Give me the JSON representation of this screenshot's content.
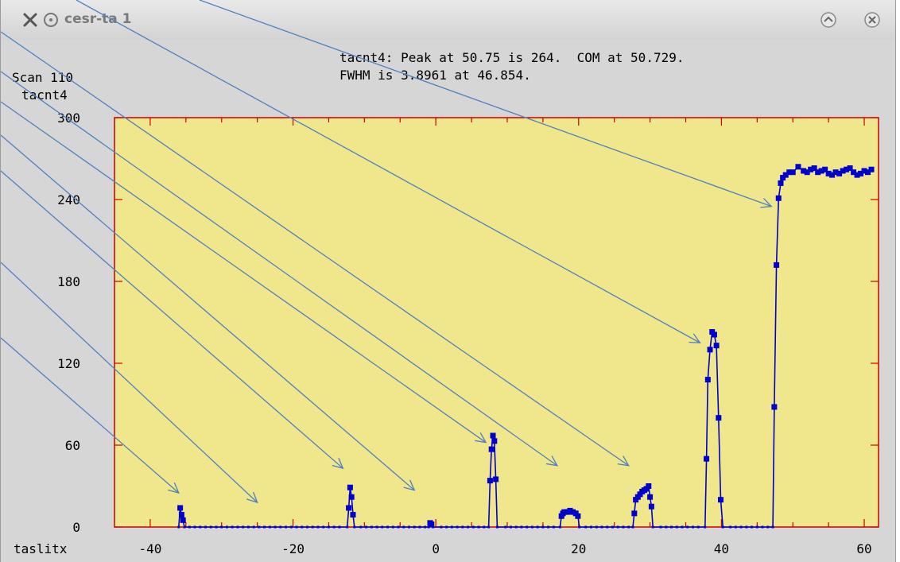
{
  "window": {
    "title": "cesr-ta 1",
    "icons": [
      "close-x-icon",
      "circle-icon",
      "maximize-icon",
      "close-icon"
    ]
  },
  "header": {
    "line1": "tacnt4: Peak at 50.75 is 264.  COM at 50.729.",
    "line2": "FWHM is 3.8961 at 46.854."
  },
  "colors": {
    "plot_bg": "#f0e68c",
    "frame": "#cc0000",
    "series": "#0000cc",
    "arrows": "#4f81bd",
    "window_bg": "#d6d6d6"
  },
  "chart_data": {
    "type": "line",
    "scan_label": "Scan 110",
    "ylabel": "tacnt4",
    "xlabel": "taslitx",
    "xlim": [
      -45,
      62
    ],
    "ylim": [
      0,
      300
    ],
    "xticks": [
      -40,
      -20,
      0,
      20,
      40,
      60
    ],
    "yticks": [
      0,
      60,
      120,
      180,
      240,
      300
    ],
    "grid": false,
    "series": [
      {
        "marker": "square",
        "points": [
          [
            -36.0,
            0
          ],
          [
            -35.8,
            14
          ],
          [
            -35.6,
            9
          ],
          [
            -35.4,
            5
          ],
          [
            -35.2,
            0
          ],
          [
            -12.4,
            0
          ],
          [
            -12.2,
            14
          ],
          [
            -12.0,
            29
          ],
          [
            -11.8,
            22
          ],
          [
            -11.6,
            9
          ],
          [
            -11.4,
            0
          ],
          [
            -1.0,
            0
          ],
          [
            -0.8,
            3
          ],
          [
            -0.6,
            2
          ],
          [
            -0.4,
            0
          ],
          [
            7.4,
            0
          ],
          [
            7.6,
            34
          ],
          [
            7.8,
            57
          ],
          [
            8.0,
            67
          ],
          [
            8.2,
            63
          ],
          [
            8.4,
            35
          ],
          [
            8.6,
            0
          ],
          [
            17.4,
            0
          ],
          [
            17.6,
            8
          ],
          [
            17.8,
            10
          ],
          [
            18.0,
            11
          ],
          [
            18.4,
            11
          ],
          [
            18.8,
            12
          ],
          [
            19.2,
            11
          ],
          [
            19.6,
            10
          ],
          [
            19.9,
            8
          ],
          [
            20.1,
            0
          ],
          [
            27.6,
            0
          ],
          [
            27.8,
            10
          ],
          [
            28.0,
            20
          ],
          [
            28.3,
            22
          ],
          [
            28.6,
            24
          ],
          [
            28.9,
            26
          ],
          [
            29.2,
            27
          ],
          [
            29.5,
            28
          ],
          [
            29.8,
            30
          ],
          [
            30.0,
            22
          ],
          [
            30.2,
            15
          ],
          [
            30.4,
            0
          ],
          [
            37.7,
            0
          ],
          [
            37.9,
            50
          ],
          [
            38.1,
            108
          ],
          [
            38.4,
            130
          ],
          [
            38.7,
            143
          ],
          [
            39.0,
            141
          ],
          [
            39.3,
            133
          ],
          [
            39.6,
            80
          ],
          [
            39.9,
            20
          ],
          [
            40.2,
            0
          ],
          [
            47.2,
            0
          ],
          [
            47.4,
            88
          ],
          [
            47.7,
            192
          ],
          [
            48.0,
            241
          ],
          [
            48.3,
            252
          ],
          [
            48.6,
            256
          ],
          [
            49.0,
            258
          ],
          [
            49.5,
            260
          ],
          [
            50.0,
            260
          ],
          [
            50.75,
            264
          ],
          [
            51.5,
            261
          ],
          [
            52.0,
            260
          ],
          [
            52.5,
            262
          ],
          [
            53.0,
            263
          ],
          [
            53.5,
            260
          ],
          [
            54.0,
            261
          ],
          [
            54.5,
            262
          ],
          [
            55.0,
            259
          ],
          [
            55.5,
            258
          ],
          [
            56.0,
            260
          ],
          [
            56.5,
            259
          ],
          [
            57.0,
            261
          ],
          [
            57.5,
            262
          ],
          [
            58.0,
            263
          ],
          [
            58.5,
            260
          ],
          [
            59.0,
            258
          ],
          [
            59.5,
            259
          ],
          [
            60.0,
            261
          ],
          [
            60.5,
            260
          ],
          [
            61.0,
            262
          ]
        ]
      }
    ],
    "arrow_targets": [
      [
        -36,
        25
      ],
      [
        -25,
        18
      ],
      [
        -13,
        43
      ],
      [
        -3,
        27
      ],
      [
        7,
        62
      ],
      [
        17,
        45
      ],
      [
        27,
        45
      ],
      [
        37,
        135
      ],
      [
        47,
        235
      ]
    ]
  }
}
